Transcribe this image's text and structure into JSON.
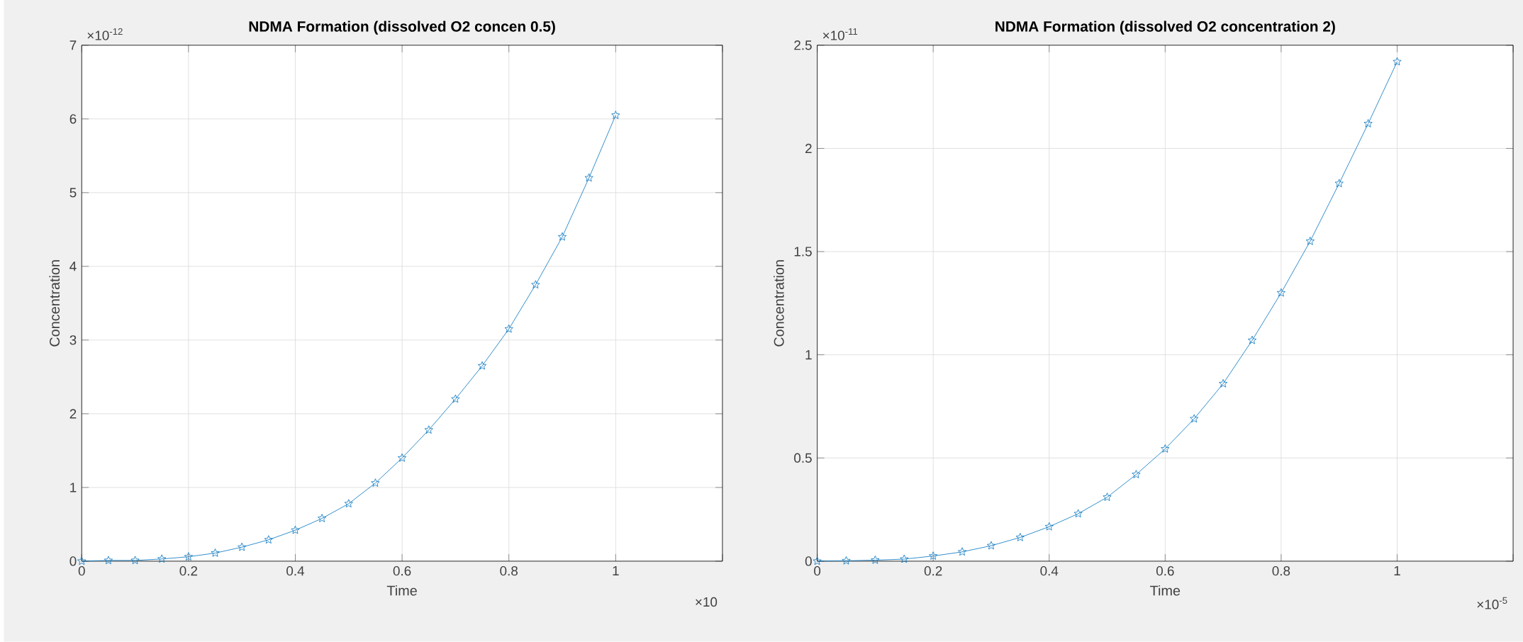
{
  "chart_data": [
    {
      "type": "line",
      "title": "NDMA Formation (dissolved O2 concen 0.5)",
      "xlabel": "Time",
      "ylabel": "Concentration",
      "annotations": [
        "×10$^{-12}$",
        "×10"
      ],
      "x": [
        0,
        0.05,
        0.1,
        0.15,
        0.2,
        0.25,
        0.3,
        0.35,
        0.4,
        0.45,
        0.5,
        0.55,
        0.6,
        0.65,
        0.7,
        0.75,
        0.8,
        0.85,
        0.9,
        0.95,
        1
      ],
      "values": [
        0,
        0.01,
        0.01,
        0.03,
        0.06,
        0.11,
        0.19,
        0.29,
        0.42,
        0.58,
        0.78,
        1.06,
        1.4,
        1.78,
        2.2,
        2.65,
        3.15,
        3.75,
        4.4,
        5.2,
        6.05
      ],
      "color": "#0072bd",
      "marker": "star",
      "line_style": "solid",
      "grid": true,
      "xlim": [
        0,
        1.2
      ],
      "ylim": [
        0,
        7
      ],
      "xticks": [
        0,
        0.2,
        0.4,
        0.6,
        0.8,
        1,
        {
          "value": 1.2,
          "label": null
        }
      ],
      "yticks": [
        0,
        1,
        2,
        3,
        4,
        5,
        6,
        7
      ]
    },
    {
      "type": "line",
      "title": "NDMA Formation (dissolved O2 concentration 2)",
      "xlabel": "Time",
      "ylabel": "Concentration",
      "annotations": [
        "×10$^{-11}$",
        "×10$^{-5}$"
      ],
      "x": [
        0,
        0.05,
        0.1,
        0.15,
        0.2,
        0.25,
        0.3,
        0.35,
        0.4,
        0.45,
        0.5,
        0.55,
        0.6,
        0.65,
        0.7,
        0.75,
        0.8,
        0.85,
        0.9,
        0.95,
        1
      ],
      "values": [
        0,
        0.002,
        0.005,
        0.01,
        0.025,
        0.045,
        0.075,
        0.115,
        0.167,
        0.23,
        0.31,
        0.42,
        0.544,
        0.69,
        0.86,
        1.07,
        1.3,
        1.55,
        1.83,
        2.12,
        2.42
      ],
      "color": "#0072bd",
      "marker": "star",
      "line_style": "solid",
      "grid": true,
      "xlim": [
        0,
        1.2
      ],
      "ylim": [
        0,
        2.5
      ],
      "xticks": [
        0,
        0.2,
        0.4,
        0.6,
        0.8,
        1,
        {
          "value": 1.2,
          "label": null
        }
      ],
      "yticks": [
        0,
        0.5,
        1,
        1.5,
        2,
        2.5
      ]
    }
  ]
}
